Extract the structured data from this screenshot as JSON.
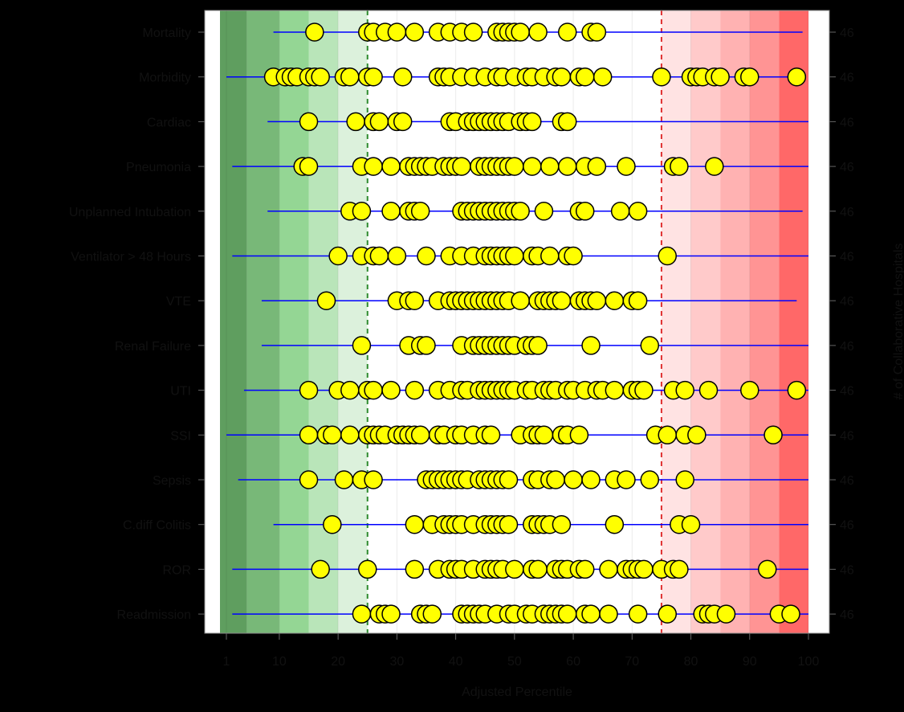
{
  "chart_data": {
    "type": "scatter",
    "xlabel": "Adjusted Percentile",
    "ylabel_right": "# of Collaborative Hospitals",
    "xlim": [
      1,
      100
    ],
    "xticks": [
      1,
      10,
      20,
      30,
      40,
      50,
      60,
      70,
      80,
      90,
      100
    ],
    "reference_lines": [
      25,
      75
    ],
    "background_bands": [
      {
        "from": 0,
        "to": 4.5,
        "color": "#5f9e5f"
      },
      {
        "from": 4.5,
        "to": 10,
        "color": "#78b878"
      },
      {
        "from": 10,
        "to": 15,
        "color": "#94d694"
      },
      {
        "from": 15,
        "to": 20,
        "color": "#b9e5b9"
      },
      {
        "from": 20,
        "to": 25,
        "color": "#dcf1dc"
      },
      {
        "from": 25,
        "to": 75,
        "color": "#ffffff"
      },
      {
        "from": 75,
        "to": 80,
        "color": "#ffe3e3"
      },
      {
        "from": 80,
        "to": 85,
        "color": "#ffcaca"
      },
      {
        "from": 85,
        "to": 90,
        "color": "#ffb2b2"
      },
      {
        "from": 90,
        "to": 95,
        "color": "#ff9494"
      },
      {
        "from": 95,
        "to": 100,
        "color": "#ff6868"
      }
    ],
    "colors": {
      "marker_fill": "#ffff00",
      "marker_stroke": "#000000",
      "range_line": "#0000ff",
      "ref_green": "#2e8b2e",
      "ref_red": "#e03030"
    },
    "grid": true,
    "rows": [
      {
        "label": "Mortality",
        "n": "46",
        "range": [
          9,
          99
        ],
        "points": [
          16,
          25,
          26,
          28,
          30,
          33,
          37,
          39,
          41,
          43,
          47,
          48,
          49,
          50,
          51,
          54,
          59,
          63,
          64
        ]
      },
      {
        "label": "Morbidity",
        "n": "46",
        "range": [
          1,
          99
        ],
        "points": [
          9,
          11,
          12,
          13,
          15,
          16,
          17,
          21,
          22,
          25,
          26,
          31,
          37,
          38,
          39,
          41,
          43,
          45,
          47,
          48,
          50,
          52,
          53,
          55,
          57,
          58,
          61,
          62,
          65,
          75,
          80,
          81,
          82,
          84,
          85,
          89,
          90,
          98
        ]
      },
      {
        "label": "Cardiac",
        "n": "46",
        "range": [
          8,
          100
        ],
        "points": [
          15,
          23,
          26,
          27,
          30,
          31,
          39,
          40,
          42,
          43,
          44,
          45,
          46,
          47,
          48,
          49,
          51,
          52,
          53,
          58,
          59
        ]
      },
      {
        "label": "Pneumonia",
        "n": "46",
        "range": [
          2,
          100
        ],
        "points": [
          14,
          15,
          24,
          26,
          29,
          32,
          33,
          34,
          35,
          36,
          38,
          39,
          40,
          41,
          44,
          45,
          46,
          47,
          48,
          49,
          50,
          53,
          56,
          59,
          62,
          64,
          69,
          77,
          78,
          84
        ]
      },
      {
        "label": "Unplanned Intubation",
        "n": "46",
        "range": [
          8,
          99
        ],
        "points": [
          22,
          24,
          29,
          32,
          33,
          34,
          41,
          42,
          43,
          44,
          45,
          46,
          47,
          48,
          49,
          50,
          51,
          55,
          61,
          62,
          68,
          71
        ]
      },
      {
        "label": "Ventilator > 48 Hours",
        "n": "46",
        "range": [
          2,
          100
        ],
        "points": [
          20,
          24,
          26,
          27,
          30,
          35,
          39,
          41,
          43,
          45,
          46,
          47,
          48,
          49,
          50,
          53,
          54,
          56,
          59,
          60,
          76
        ]
      },
      {
        "label": "VTE",
        "n": "46",
        "range": [
          7,
          98
        ],
        "points": [
          18,
          30,
          32,
          33,
          37,
          39,
          40,
          41,
          42,
          43,
          44,
          45,
          46,
          47,
          48,
          49,
          51,
          54,
          55,
          56,
          57,
          58,
          61,
          62,
          63,
          64,
          67,
          70,
          71
        ]
      },
      {
        "label": "Renal Failure",
        "n": "46",
        "range": [
          7,
          100
        ],
        "points": [
          24,
          32,
          34,
          35,
          41,
          43,
          44,
          45,
          46,
          47,
          48,
          49,
          50,
          52,
          53,
          54,
          63,
          73
        ]
      },
      {
        "label": "UTI",
        "n": "46",
        "range": [
          4,
          100
        ],
        "points": [
          15,
          20,
          22,
          25,
          26,
          29,
          33,
          37,
          39,
          41,
          42,
          44,
          45,
          46,
          47,
          48,
          49,
          50,
          52,
          53,
          55,
          56,
          57,
          59,
          60,
          62,
          64,
          65,
          67,
          70,
          71,
          72,
          77,
          79,
          83,
          90,
          98
        ]
      },
      {
        "label": "SSI",
        "n": "46",
        "range": [
          1,
          100
        ],
        "points": [
          15,
          18,
          19,
          22,
          25,
          26,
          27,
          28,
          30,
          31,
          32,
          33,
          34,
          37,
          38,
          40,
          41,
          43,
          45,
          46,
          51,
          53,
          54,
          55,
          58,
          59,
          61,
          74,
          76,
          79,
          81,
          94
        ]
      },
      {
        "label": "Sepsis",
        "n": "46",
        "range": [
          3,
          100
        ],
        "points": [
          15,
          21,
          24,
          26,
          35,
          36,
          37,
          38,
          39,
          40,
          41,
          42,
          44,
          45,
          46,
          47,
          48,
          49,
          53,
          54,
          56,
          57,
          60,
          63,
          67,
          69,
          73,
          79
        ]
      },
      {
        "label": "C.diff Colitis",
        "n": "46",
        "range": [
          9,
          100
        ],
        "points": [
          19,
          33,
          36,
          38,
          39,
          40,
          41,
          43,
          45,
          46,
          47,
          48,
          49,
          53,
          54,
          55,
          56,
          58,
          67,
          78,
          80
        ]
      },
      {
        "label": "ROR",
        "n": "46",
        "range": [
          2,
          100
        ],
        "points": [
          17,
          25,
          33,
          37,
          39,
          40,
          41,
          43,
          45,
          46,
          47,
          48,
          50,
          53,
          54,
          57,
          58,
          59,
          61,
          62,
          66,
          69,
          70,
          71,
          72,
          75,
          77,
          78,
          93
        ]
      },
      {
        "label": "Readmission",
        "n": "46",
        "range": [
          2,
          100
        ],
        "points": [
          24,
          27,
          28,
          29,
          34,
          35,
          36,
          41,
          42,
          43,
          44,
          45,
          47,
          49,
          50,
          52,
          53,
          55,
          56,
          57,
          58,
          59,
          62,
          63,
          66,
          71,
          76,
          82,
          83,
          84,
          86,
          95,
          97
        ]
      }
    ]
  }
}
